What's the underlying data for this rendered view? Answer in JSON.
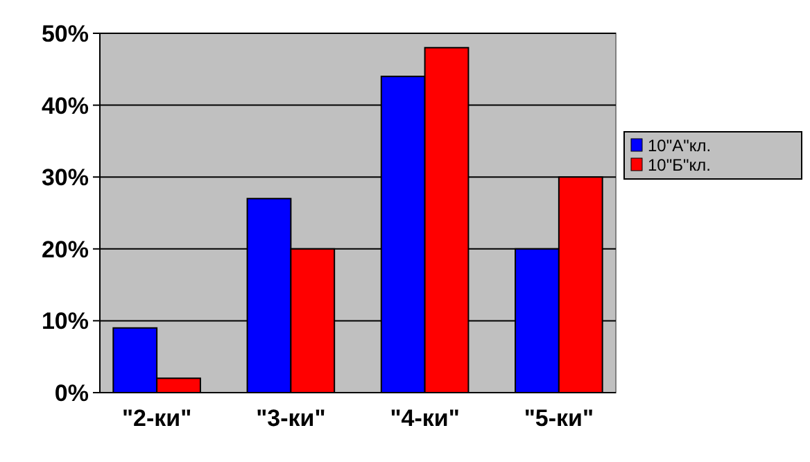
{
  "chart_data": {
    "type": "bar",
    "categories": [
      "\"2-ки\"",
      "\"3-ки\"",
      "\"4-ки\"",
      "\"5-ки\""
    ],
    "series": [
      {
        "name": "10\"А\"кл.",
        "color": "#0000ff",
        "values": [
          9,
          27,
          44,
          20
        ]
      },
      {
        "name": "10\"Б\"кл.",
        "color": "#ff0000",
        "values": [
          2,
          20,
          48,
          30
        ]
      }
    ],
    "ylim": [
      0,
      50
    ],
    "yticks": [
      {
        "value": 0,
        "label": "0%"
      },
      {
        "value": 10,
        "label": "10%"
      },
      {
        "value": 20,
        "label": "20%"
      },
      {
        "value": 30,
        "label": "30%"
      },
      {
        "value": 40,
        "label": "40%"
      },
      {
        "value": 50,
        "label": "50%"
      }
    ],
    "grid": "y",
    "legend": "right"
  }
}
